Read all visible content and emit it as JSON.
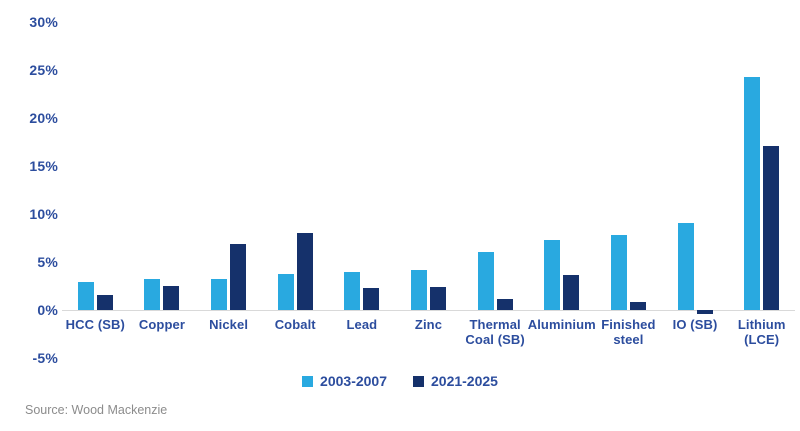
{
  "source_note": "Source: Wood Mackenzie",
  "colors": {
    "series1": "#29A9E0",
    "series2": "#15316B",
    "axis_text": "#2C4D9E",
    "source_text": "#8C8C8C",
    "baseline": "#D9D9D9",
    "background": "#FFFFFF"
  },
  "legend": {
    "entries": [
      {
        "label": "2003-2007",
        "color": "#29A9E0"
      },
      {
        "label": "2021-2025",
        "color": "#15316B"
      }
    ]
  },
  "chart_data": {
    "type": "bar",
    "title": "",
    "xlabel": "",
    "ylabel": "",
    "unit": "%",
    "grid": false,
    "legend_position": "bottom",
    "ylim": [
      -5,
      30
    ],
    "y_tick_values": [
      30,
      25,
      20,
      15,
      10,
      5,
      0,
      -5
    ],
    "y_tick_labels": [
      "30%",
      "25%",
      "20%",
      "15%",
      "10%",
      "5%",
      "0%",
      "-5%"
    ],
    "categories": [
      "HCC (SB)",
      "Copper",
      "Nickel",
      "Cobalt",
      "Lead",
      "Zinc",
      "Thermal Coal (SB)",
      "Aluminium",
      "Finished steel",
      "IO (SB)",
      "Lithium (LCE)"
    ],
    "series": [
      {
        "name": "2003-2007",
        "color": "#29A9E0",
        "values": [
          2.9,
          3.2,
          3.2,
          3.7,
          4.0,
          4.2,
          6.0,
          7.3,
          7.8,
          9.1,
          24.3
        ]
      },
      {
        "name": "2021-2025",
        "color": "#15316B",
        "values": [
          1.6,
          2.5,
          6.9,
          8.0,
          2.3,
          2.4,
          1.1,
          3.6,
          0.8,
          -0.4,
          17.1
        ]
      }
    ]
  }
}
